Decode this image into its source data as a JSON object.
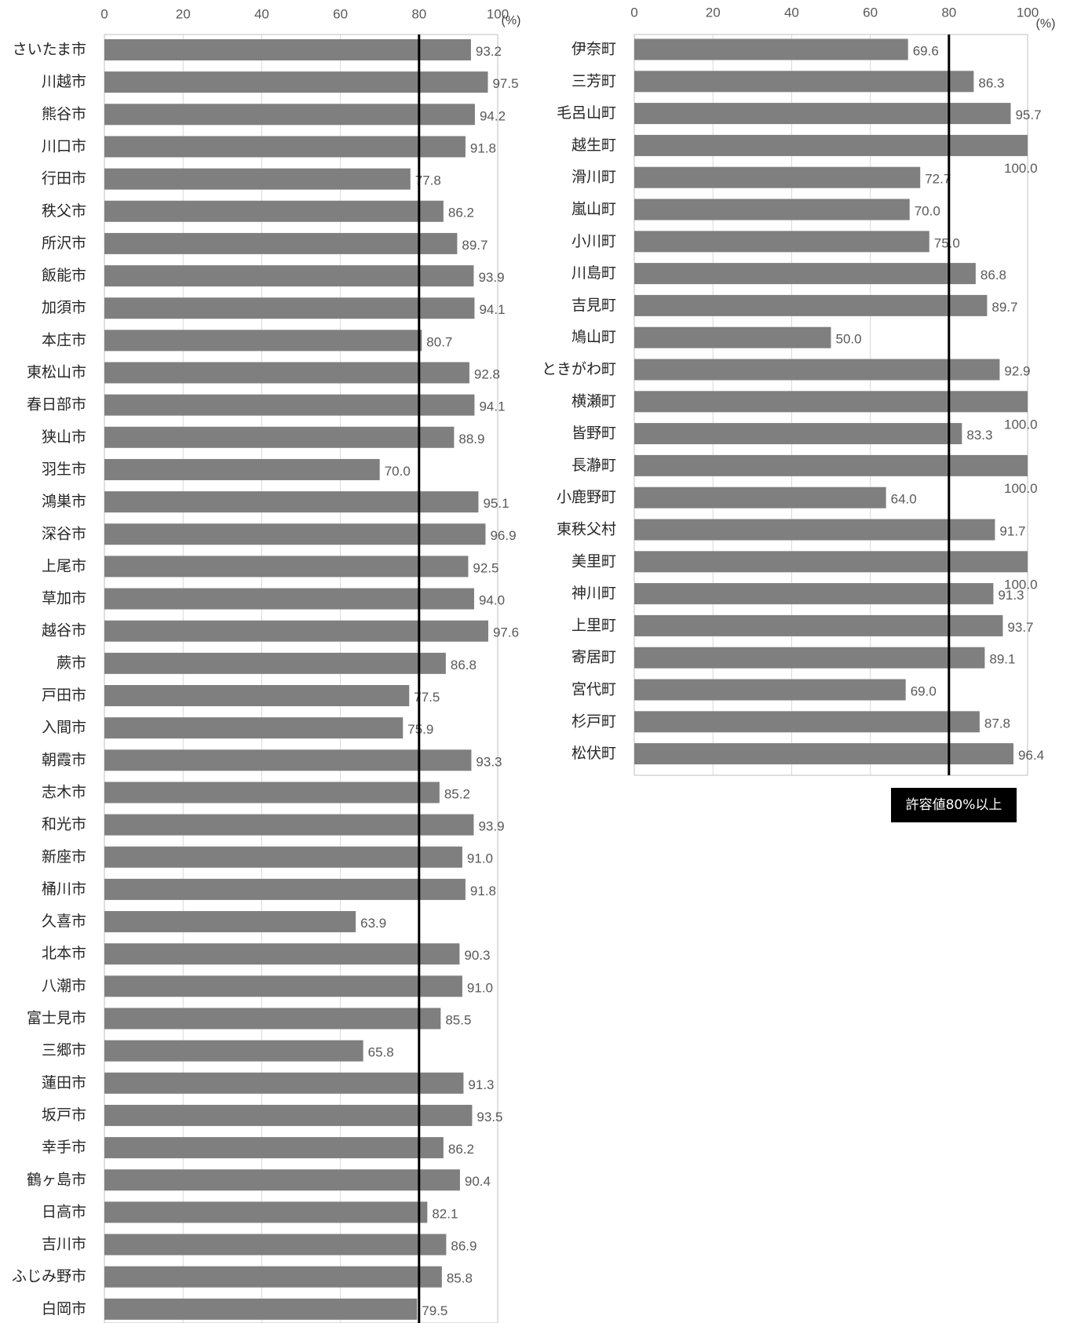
{
  "colors": {
    "bar": "#7f7f7f",
    "threshold": "#000000",
    "grid": "#d9d9d9"
  },
  "threshold_label": "許容値80%以上",
  "chart_data": [
    {
      "type": "bar",
      "orientation": "horizontal",
      "xlim": [
        0,
        100
      ],
      "ticks": [
        "0",
        "20",
        "40",
        "60",
        "80",
        "100"
      ],
      "unit": "(%)",
      "threshold": 80,
      "categories": [
        "さいたま市",
        "川越市",
        "熊谷市",
        "川口市",
        "行田市",
        "秩父市",
        "所沢市",
        "飯能市",
        "加須市",
        "本庄市",
        "東松山市",
        "春日部市",
        "狭山市",
        "羽生市",
        "鴻巣市",
        "深谷市",
        "上尾市",
        "草加市",
        "越谷市",
        "蕨市",
        "戸田市",
        "入間市",
        "朝霞市",
        "志木市",
        "和光市",
        "新座市",
        "桶川市",
        "久喜市",
        "北本市",
        "八潮市",
        "富士見市",
        "三郷市",
        "蓮田市",
        "坂戸市",
        "幸手市",
        "鶴ヶ島市",
        "日高市",
        "吉川市",
        "ふじみ野市",
        "白岡市"
      ],
      "values": [
        93.2,
        97.5,
        94.2,
        91.8,
        77.8,
        86.2,
        89.7,
        93.9,
        94.1,
        80.7,
        92.8,
        94.1,
        88.9,
        70.0,
        95.1,
        96.9,
        92.5,
        94.0,
        97.6,
        86.8,
        77.5,
        75.9,
        93.3,
        85.2,
        93.9,
        91.0,
        91.8,
        63.9,
        90.3,
        91.0,
        85.5,
        65.8,
        91.3,
        93.5,
        86.2,
        90.4,
        82.1,
        86.9,
        85.8,
        79.5
      ],
      "labels": [
        "93.2",
        "97.5",
        "94.2",
        "91.8",
        "77.8",
        "86.2",
        "89.7",
        "93.9",
        "94.1",
        "80.7",
        "92.8",
        "94.1",
        "88.9",
        "70.0",
        "95.1",
        "96.9",
        "92.5",
        "94.0",
        "97.6",
        "86.8",
        "77.5",
        "75.9",
        "93.3",
        "85.2",
        "93.9",
        "91.0",
        "91.8",
        "63.9",
        "90.3",
        "91.0",
        "85.5",
        "65.8",
        "91.3",
        "93.5",
        "86.2",
        "90.4",
        "82.1",
        "86.9",
        "85.8",
        "79.5"
      ]
    },
    {
      "type": "bar",
      "orientation": "horizontal",
      "xlim": [
        0,
        100
      ],
      "ticks": [
        "0",
        "20",
        "40",
        "60",
        "80",
        "100"
      ],
      "unit": "(%)",
      "threshold": 80,
      "categories": [
        "伊奈町",
        "三芳町",
        "毛呂山町",
        "越生町",
        "滑川町",
        "嵐山町",
        "小川町",
        "川島町",
        "吉見町",
        "鳩山町",
        "ときがわ町",
        "横瀬町",
        "皆野町",
        "長瀞町",
        "小鹿野町",
        "東秩父村",
        "美里町",
        "神川町",
        "上里町",
        "寄居町",
        "宮代町",
        "杉戸町",
        "松伏町"
      ],
      "values": [
        69.6,
        86.3,
        95.7,
        100.0,
        72.7,
        70.0,
        75.0,
        86.8,
        89.7,
        50.0,
        92.9,
        100.0,
        83.3,
        100.0,
        64.0,
        91.7,
        100.0,
        91.3,
        93.7,
        89.1,
        69.0,
        87.8,
        96.4
      ],
      "labels": [
        "69.6",
        "86.3",
        "95.7",
        "100.0",
        "72.7",
        "70.0",
        "75.0",
        "86.8",
        "89.7",
        "50.0",
        "92.9",
        "100.0",
        "83.3",
        "100.0",
        "64.0",
        "91.7",
        "100.0",
        "91.3",
        "93.7",
        "89.1",
        "69.0",
        "87.8",
        "96.4"
      ]
    }
  ]
}
